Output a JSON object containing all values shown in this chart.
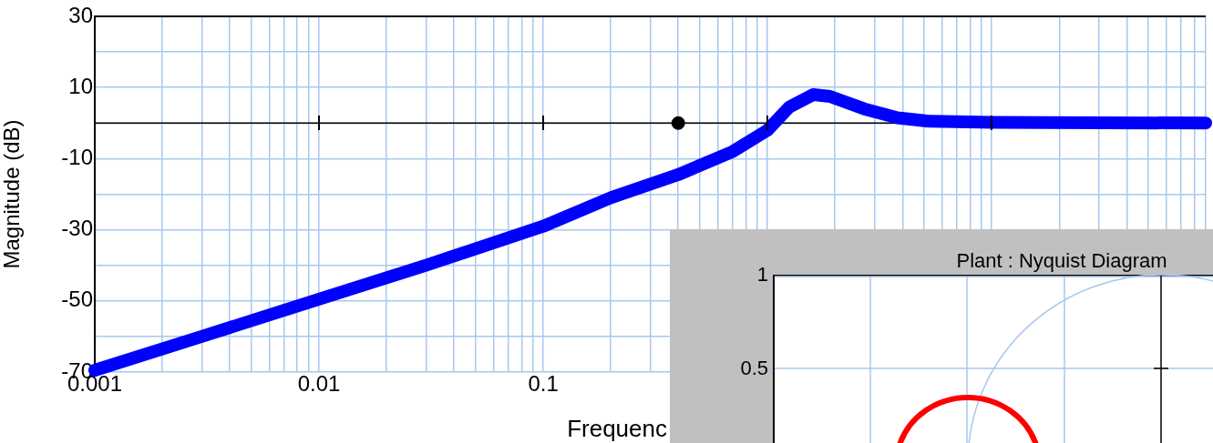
{
  "chart_data": [
    {
      "type": "line",
      "xlabel": "Frequenc",
      "ylabel": "Magnitude (dB)",
      "log": "x",
      "grid": true,
      "xlim": [
        0.001,
        90
      ],
      "ylim": [
        -70,
        30
      ],
      "xticks": [
        0.001,
        {
          "value": 0.002,
          "label": null
        },
        {
          "value": 0.003,
          "label": null
        },
        {
          "value": 0.004,
          "label": null
        },
        {
          "value": 0.005,
          "label": null
        },
        {
          "value": 0.006,
          "label": null
        },
        {
          "value": 0.007,
          "label": null
        },
        {
          "value": 0.008,
          "label": null
        },
        {
          "value": 0.009,
          "label": null
        },
        0.01,
        {
          "value": 0.02,
          "label": null
        },
        {
          "value": 0.03,
          "label": null
        },
        {
          "value": 0.04,
          "label": null
        },
        {
          "value": 0.05,
          "label": null
        },
        {
          "value": 0.06,
          "label": null
        },
        {
          "value": 0.07,
          "label": null
        },
        {
          "value": 0.08,
          "label": null
        },
        {
          "value": 0.09,
          "label": null
        },
        0.1,
        {
          "value": 0.2,
          "label": null
        },
        {
          "value": 0.3,
          "label": null
        },
        {
          "value": 0.4,
          "label": null
        },
        {
          "value": 0.5,
          "label": null
        },
        {
          "value": 0.6,
          "label": null
        },
        {
          "value": 0.7,
          "label": null
        },
        {
          "value": 0.8,
          "label": null
        },
        {
          "value": 0.9,
          "label": null
        },
        {
          "value": 1,
          "label": null
        },
        {
          "value": 2,
          "label": null
        },
        {
          "value": 3,
          "label": null
        },
        {
          "value": 4,
          "label": null
        },
        {
          "value": 5,
          "label": null
        },
        {
          "value": 6,
          "label": null
        },
        {
          "value": 7,
          "label": null
        },
        {
          "value": 8,
          "label": null
        },
        {
          "value": 9,
          "label": null
        },
        {
          "value": 10,
          "label": null
        },
        {
          "value": 20,
          "label": null
        },
        {
          "value": 30,
          "label": null
        },
        {
          "value": 40,
          "label": null
        },
        {
          "value": 50,
          "label": null
        },
        {
          "value": 60,
          "label": null
        },
        {
          "value": 70,
          "label": null
        },
        {
          "value": 80,
          "label": null
        },
        {
          "value": 90,
          "label": null
        }
      ],
      "yticks": [
        -70,
        {
          "value": -60,
          "label": null
        },
        -50,
        {
          "value": -40,
          "label": null
        },
        -30,
        {
          "value": -20,
          "label": null
        },
        -10,
        {
          "value": 0,
          "label": null
        },
        10,
        {
          "value": 20,
          "label": null
        },
        30
      ],
      "ref_lines": [
        {
          "axis": "y",
          "value": 0,
          "color": "#000000"
        }
      ],
      "series": [
        {
          "type": "line",
          "color": "#0000ff",
          "x": [
            0.001,
            0.003,
            0.01,
            0.03,
            0.1,
            0.2,
            0.4,
            0.7,
            1,
            1.25,
            1.6,
            1.9,
            2.7,
            3.8,
            5.3,
            10,
            90
          ],
          "values": [
            -69.5,
            -60,
            -49.5,
            -40,
            -29,
            -21,
            -14.5,
            -8,
            -2,
            4.5,
            8,
            7.5,
            4,
            1.5,
            0.5,
            0.2,
            0
          ]
        },
        {
          "type": "scatter",
          "color": "#000000",
          "marker": "circle",
          "x": [
            0.4
          ],
          "values": [
            0
          ]
        }
      ]
    },
    {
      "type": "other",
      "title": "Plant : Nyquist Diagram",
      "annotations": [
        "1",
        "0.5"
      ]
    }
  ]
}
